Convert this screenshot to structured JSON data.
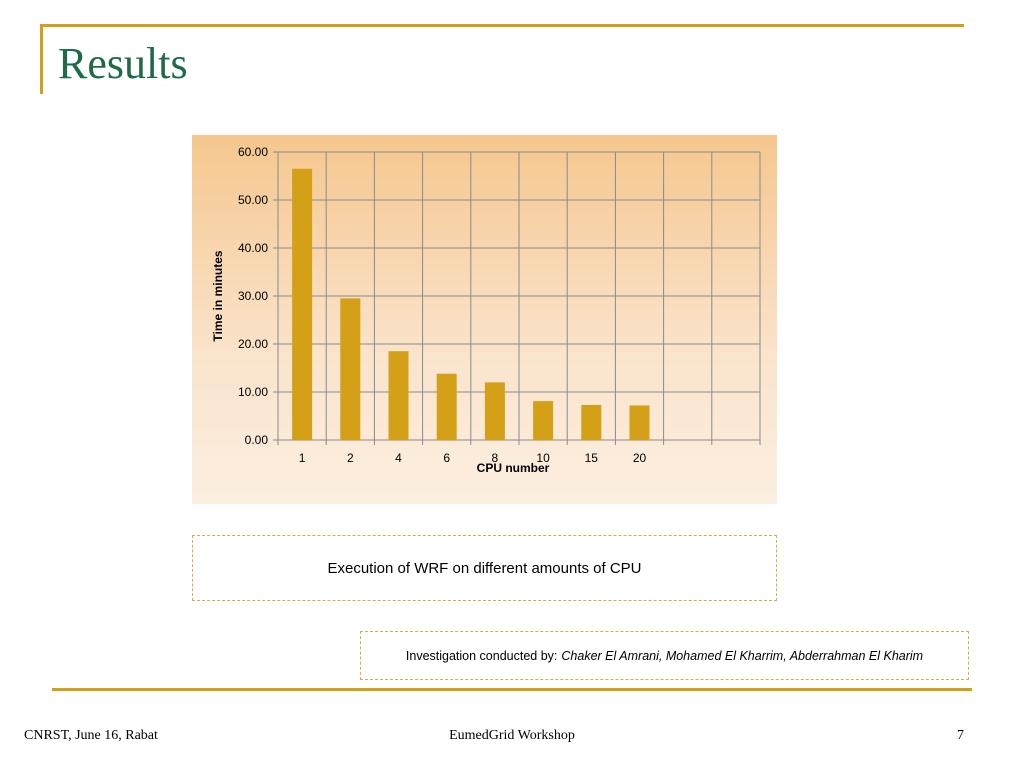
{
  "slide": {
    "title": "Results",
    "caption": "Execution of WRF on different amounts of CPU",
    "credit_prefix": "Investigation conducted by:",
    "credit_names": "Chaker El Amrani, Mohamed El Kharrim, Abderrahman El Kharim"
  },
  "footer": {
    "left": "CNRST, June 16, Rabat",
    "center": "EumedGrid Workshop",
    "page_number": "7"
  },
  "colors": {
    "accent": "#d4a017",
    "title": "#1f6b46",
    "bar": "#d4a017"
  },
  "chart_data": {
    "type": "bar",
    "categories": [
      "1",
      "2",
      "4",
      "6",
      "8",
      "10",
      "15",
      "20",
      "",
      ""
    ],
    "values": [
      56.5,
      29.5,
      18.5,
      13.8,
      12.0,
      8.1,
      7.3,
      7.2,
      null,
      null
    ],
    "ylabel": "Time in minutes",
    "xlabel": "CPU number",
    "ylim": [
      0,
      60
    ],
    "yticks": [
      "0.00",
      "10.00",
      "20.00",
      "30.00",
      "40.00",
      "50.00",
      "60.00"
    ],
    "grid": true
  }
}
